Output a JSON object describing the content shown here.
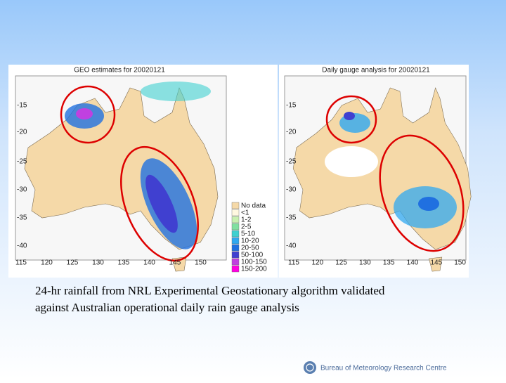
{
  "maps": [
    {
      "title": "GEO estimates for 20020121",
      "lat_labels": [
        "-15",
        "-20",
        "-25",
        "-30",
        "-35",
        "-40"
      ],
      "lon_labels": [
        "115",
        "120",
        "125",
        "130",
        "135",
        "140",
        "145",
        "150"
      ]
    },
    {
      "title": "Daily gauge analysis for 20020121",
      "lat_labels": [
        "-15",
        "-20",
        "-25",
        "-30",
        "-35",
        "-40"
      ],
      "lon_labels": [
        "115",
        "120",
        "125",
        "130",
        "135",
        "140",
        "145",
        "150"
      ]
    }
  ],
  "legend": {
    "items": [
      {
        "label": "No data",
        "color": "#f5d9a8"
      },
      {
        "label": "<1",
        "color": "#fff8e0"
      },
      {
        "label": "1-2",
        "color": "#c8f0b0"
      },
      {
        "label": "2-5",
        "color": "#80e0a0"
      },
      {
        "label": "5-10",
        "color": "#40d0d0"
      },
      {
        "label": "10-20",
        "color": "#30a8f0"
      },
      {
        "label": "20-50",
        "color": "#2070e0"
      },
      {
        "label": "50-100",
        "color": "#4040d0"
      },
      {
        "label": "100-150",
        "color": "#c040e0"
      },
      {
        "label": "150-200",
        "color": "#ff00e0"
      }
    ]
  },
  "caption": [
    "24-hr rainfall from NRL Experimental Geostationary algorithm validated",
    "against Australian operational daily rain gauge analysis"
  ],
  "footer": "Bureau of Meteorology Research Centre"
}
